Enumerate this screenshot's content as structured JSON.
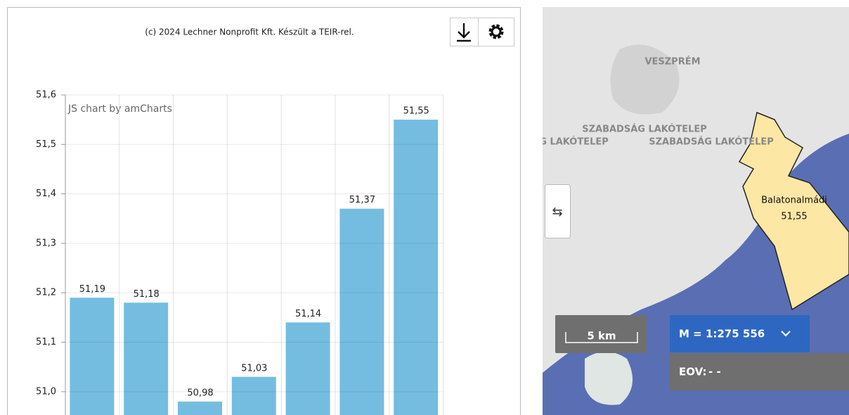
{
  "chart_data": {
    "type": "bar",
    "credit": "(c) 2024 Lechner Nonprofit Kft. Készült a TEIR-rel.",
    "watermark": "JS chart by amCharts",
    "values": [
      51.19,
      51.18,
      50.98,
      51.03,
      51.14,
      51.37,
      51.55
    ],
    "value_labels": [
      "51,19",
      "51,18",
      "50,98",
      "51,03",
      "51,14",
      "51,37",
      "51,55"
    ],
    "color": "#74bde0",
    "ylim": [
      50.95,
      51.6
    ],
    "yticks": [
      {
        "value": 51.0,
        "label": "51,0"
      },
      {
        "value": 51.1,
        "label": "51,1"
      },
      {
        "value": 51.2,
        "label": "51,2"
      },
      {
        "value": 51.3,
        "label": "51,3"
      },
      {
        "value": 51.4,
        "label": "51,4"
      },
      {
        "value": 51.5,
        "label": "51,5"
      },
      {
        "value": 51.6,
        "label": "51,6"
      }
    ],
    "grid": true
  },
  "map": {
    "city": "VESZPRÉM",
    "district_labels": [
      "SZABADSÁG LAKÓTELEP",
      "SZABADSÁG LAKÓTELEP",
      "SZABADSÁG LAKÓTELEP"
    ],
    "area_name": "Balatonalmádi",
    "area_value": "51,55",
    "scale": "5 km",
    "ratio": "M = 1:275 556",
    "coord_label": "EOV:",
    "coord_value": "- -"
  }
}
